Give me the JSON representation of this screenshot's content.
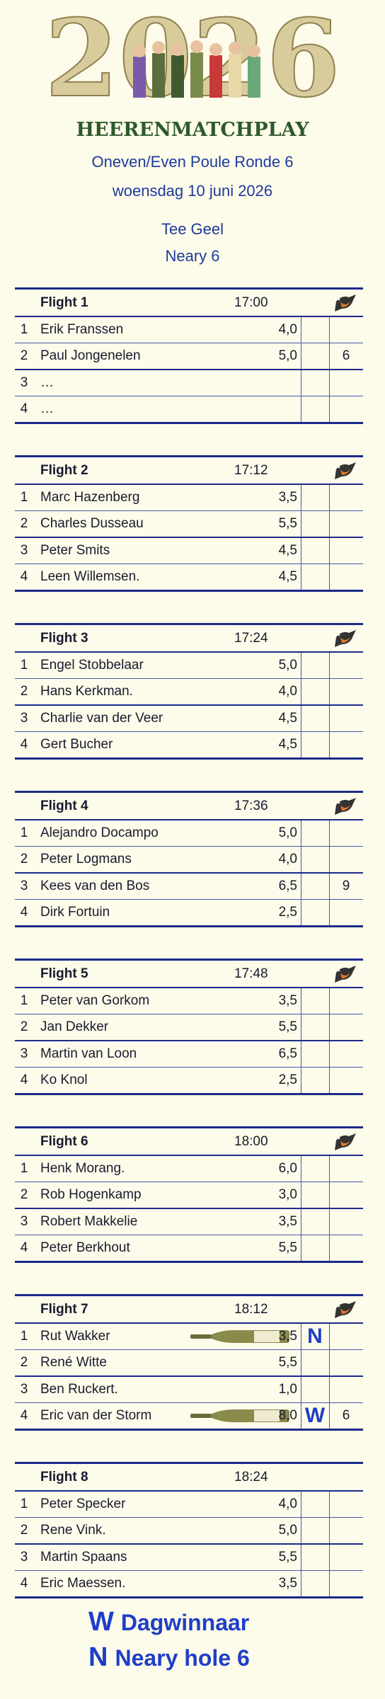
{
  "header": {
    "logo_year": "2026",
    "logo_text": "HEERENMATCHPLAY",
    "line1": "Oneven/Even Poule Ronde 6",
    "line2": "woensdag 10 juni 2026",
    "tee": "Tee Geel",
    "neary": "Neary 6"
  },
  "flights": [
    {
      "name": "Flight 1",
      "time": "17:00",
      "players": [
        {
          "num": "1",
          "name": "Erik Franssen",
          "score": "4,0"
        },
        {
          "num": "2",
          "name": "Paul Jongenelen",
          "score": "5,0",
          "points": "6"
        },
        {
          "num": "3",
          "name": "…"
        },
        {
          "num": "4",
          "name": "…"
        }
      ]
    },
    {
      "name": "Flight 2",
      "time": "17:12",
      "players": [
        {
          "num": "1",
          "name": "Marc Hazenberg",
          "score": "3,5"
        },
        {
          "num": "2",
          "name": "Charles Dusseau",
          "score": "5,5"
        },
        {
          "num": "3",
          "name": "Peter Smits",
          "score": "4,5"
        },
        {
          "num": "4",
          "name": "Leen Willemsen.",
          "score": "4,5"
        }
      ]
    },
    {
      "name": "Flight 3",
      "time": "17:24",
      "players": [
        {
          "num": "1",
          "name": "Engel Stobbelaar",
          "score": "5,0"
        },
        {
          "num": "2",
          "name": "Hans Kerkman.",
          "score": "4,0"
        },
        {
          "num": "3",
          "name": "Charlie van der Veer",
          "score": "4,5"
        },
        {
          "num": "4",
          "name": "Gert Bucher",
          "score": "4,5"
        }
      ]
    },
    {
      "name": "Flight 4",
      "time": "17:36",
      "players": [
        {
          "num": "1",
          "name": "Alejandro Docampo",
          "score": "5,0"
        },
        {
          "num": "2",
          "name": "Peter Logmans",
          "score": "4,0"
        },
        {
          "num": "3",
          "name": "Kees van den Bos",
          "score": "6,5",
          "points": "9"
        },
        {
          "num": "4",
          "name": "Dirk Fortuin",
          "score": "2,5"
        }
      ]
    },
    {
      "name": "Flight 5",
      "time": "17:48",
      "players": [
        {
          "num": "1",
          "name": "Peter van Gorkom",
          "score": "3,5"
        },
        {
          "num": "2",
          "name": "Jan Dekker",
          "score": "5,5"
        },
        {
          "num": "3",
          "name": "Martin van Loon",
          "score": "6,5"
        },
        {
          "num": "4",
          "name": "Ko Knol",
          "score": "2,5"
        }
      ]
    },
    {
      "name": "Flight 6",
      "time": "18:00",
      "players": [
        {
          "num": "1",
          "name": "Henk Morang.",
          "score": "6,0"
        },
        {
          "num": "2",
          "name": "Rob Hogenkamp",
          "score": "3,0"
        },
        {
          "num": "3",
          "name": "Robert Makkelie",
          "score": "3,5"
        },
        {
          "num": "4",
          "name": "Peter Berkhout",
          "score": "5,5"
        }
      ]
    },
    {
      "name": "Flight 7",
      "time": "18:12",
      "players": [
        {
          "num": "1",
          "name": "Rut Wakker",
          "score": "3,5",
          "mark": "N"
        },
        {
          "num": "2",
          "name": "René Witte",
          "score": "5,5"
        },
        {
          "num": "3",
          "name": "Ben Ruckert.",
          "score": "1,0"
        },
        {
          "num": "4",
          "name": "Eric van der Storm",
          "score": "8,0",
          "mark": "W",
          "points": "6"
        }
      ]
    },
    {
      "name": "Flight 8",
      "time": "18:24",
      "players": [
        {
          "num": "1",
          "name": "Peter Specker",
          "score": "4,0"
        },
        {
          "num": "2",
          "name": "Rene Vink.",
          "score": "5,0"
        },
        {
          "num": "3",
          "name": "Martin Spaans",
          "score": "5,5"
        },
        {
          "num": "4",
          "name": "Eric Maessen.",
          "score": "3,5"
        }
      ]
    }
  ],
  "legend": [
    {
      "letter": "W",
      "text": "Dagwinnaar"
    },
    {
      "letter": "N",
      "text": "Neary hole 6"
    }
  ]
}
